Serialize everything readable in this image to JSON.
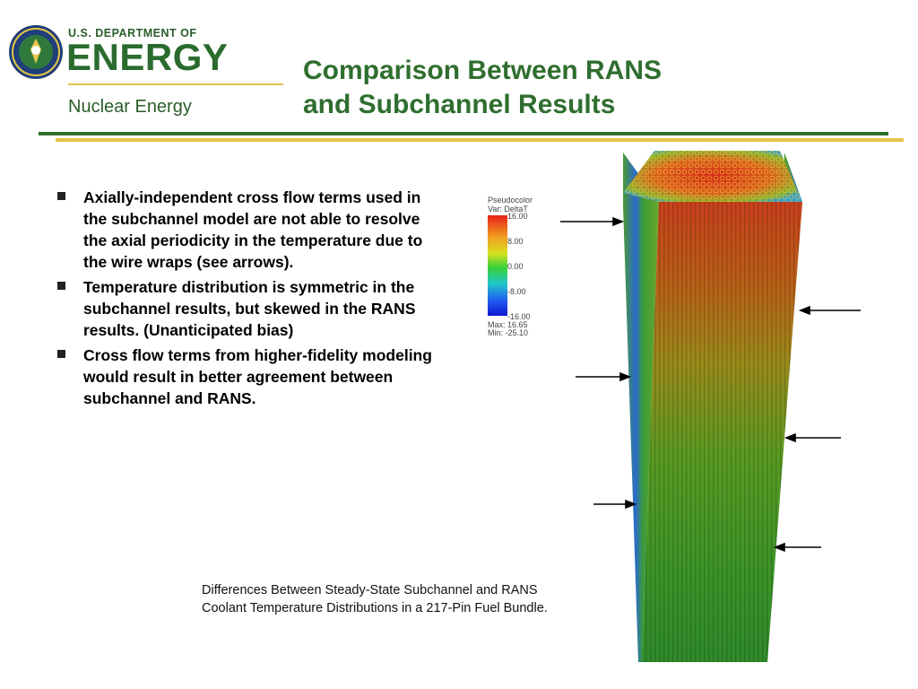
{
  "header": {
    "agency_line": "U.S. DEPARTMENT OF",
    "agency_name": "ENERGY",
    "office": "Nuclear Energy"
  },
  "title_lines": [
    "Comparison Between RANS",
    "and Subchannel Results"
  ],
  "bullets": [
    "Axially-independent cross flow terms used in the subchannel model are not able to resolve the axial periodicity in the temperature due to the wire wraps (see arrows).",
    "Temperature distribution is symmetric in the subchannel results, but skewed in the RANS results. (Unanticipated bias)",
    "Cross flow terms from higher-fidelity modeling would result in better agreement between subchannel and RANS."
  ],
  "legend": {
    "plot_type": "Pseudocolor",
    "var": "Var: DeltaT",
    "ticks": [
      "16.00",
      "8.00",
      "0.00",
      "-8.00",
      "-16.00"
    ],
    "max": "Max:  16.65",
    "min": "Min: -25.10"
  },
  "caption_lines": [
    "Differences Between Steady-State Subchannel and RANS",
    "Coolant Temperature Distributions in a 217-Pin Fuel Bundle."
  ],
  "colors": {
    "brand_green": "#2f6e2f",
    "brand_gold": "#e5c24a"
  }
}
